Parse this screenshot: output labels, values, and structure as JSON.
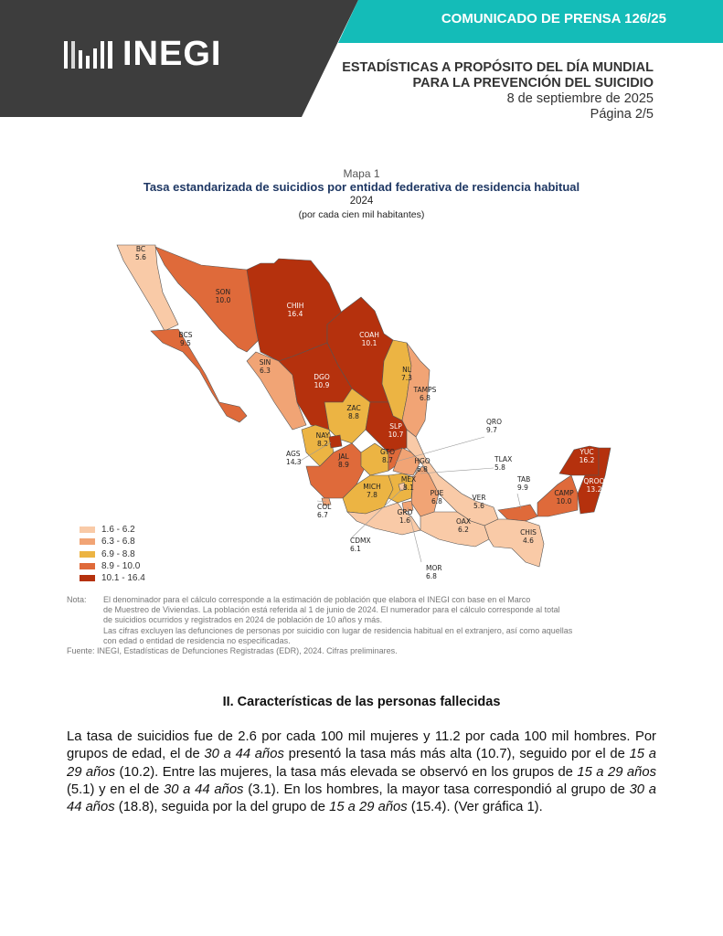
{
  "header": {
    "logo_text": "INEGI",
    "press_release": "COMUNICADO DE PRENSA 126/25",
    "title_line1": "ESTADÍSTICAS A PROPÓSITO DEL DÍA MUNDIAL",
    "title_line2": "PARA LA PREVENCIÓN DEL SUICIDIO",
    "date": "8 de septiembre de 2025",
    "page": "Página 2/5",
    "colors": {
      "dark": "#3d3d3d",
      "teal": "#14bcb8"
    }
  },
  "map": {
    "label": "Mapa 1",
    "title": "Tasa estandarizada de suicidios por entidad federativa de residencia habitual",
    "year": "2024",
    "unit": "(por cada cien mil habitantes)",
    "legend": [
      {
        "range": "1.6 - 6.2",
        "color": "#f9caa7"
      },
      {
        "range": "6.3 - 6.8",
        "color": "#f1a475"
      },
      {
        "range": "6.9 - 8.8",
        "color": "#ecb443"
      },
      {
        "range": "8.9 - 10.0",
        "color": "#df6a3a"
      },
      {
        "range": "10.1 - 16.4",
        "color": "#b5310d"
      }
    ],
    "states": [
      {
        "code": "BC",
        "value": "5.6"
      },
      {
        "code": "SON",
        "value": "10.0"
      },
      {
        "code": "CHIH",
        "value": "16.4"
      },
      {
        "code": "COAH",
        "value": "10.1"
      },
      {
        "code": "BCS",
        "value": "9.5"
      },
      {
        "code": "SIN",
        "value": "6.3"
      },
      {
        "code": "DGO",
        "value": "10.9"
      },
      {
        "code": "NL",
        "value": "7.3"
      },
      {
        "code": "TAMPS",
        "value": "6.8"
      },
      {
        "code": "ZAC",
        "value": "8.8"
      },
      {
        "code": "SLP",
        "value": "10.7"
      },
      {
        "code": "NAY",
        "value": "8.2"
      },
      {
        "code": "AGS",
        "value": "14.3"
      },
      {
        "code": "JAL",
        "value": "8.9"
      },
      {
        "code": "GTO",
        "value": "8.7"
      },
      {
        "code": "QRO",
        "value": "9.7"
      },
      {
        "code": "HGO",
        "value": "6.8"
      },
      {
        "code": "TLAX",
        "value": "5.8"
      },
      {
        "code": "MEX",
        "value": "8.1"
      },
      {
        "code": "MICH",
        "value": "7.8"
      },
      {
        "code": "PUE",
        "value": "6.8"
      },
      {
        "code": "TAB",
        "value": "9.9"
      },
      {
        "code": "VER",
        "value": "5.6"
      },
      {
        "code": "YUC",
        "value": "16.2"
      },
      {
        "code": "QROO",
        "value": "13.2"
      },
      {
        "code": "CAMP",
        "value": "10.0"
      },
      {
        "code": "COL",
        "value": "6.7"
      },
      {
        "code": "GRO",
        "value": "1.6"
      },
      {
        "code": "OAX",
        "value": "6.2"
      },
      {
        "code": "CHIS",
        "value": "4.6"
      },
      {
        "code": "CDMX",
        "value": "6.1"
      },
      {
        "code": "MOR",
        "value": "6.8"
      }
    ]
  },
  "notes": {
    "nota_label": "Nota:",
    "nota_lines": [
      "El denominador para el cálculo corresponde a la estimación de población que elabora el INEGI con base en el Marco",
      "de Muestreo de Viviendas. La población está referida al 1 de junio de 2024. El numerador para el cálculo corresponde al total",
      "de suicidios ocurridos y registrados en 2024 de población de 10 años y más.",
      "Las cifras excluyen las defunciones de personas por suicidio con lugar de residencia habitual en el extranjero, así como aquellas",
      "con edad o entidad de residencia no especificadas."
    ],
    "fuente_label": "Fuente:",
    "fuente": "INEGI, Estadísticas de Defunciones Registradas (EDR), 2024. Cifras preliminares."
  },
  "section": {
    "title": "II. Características de las personas fallecidas",
    "paragraph": [
      {
        "t": "La tasa de suicidios fue de 2.6 por cada 100 mil mujeres y 11.2 por cada 100 mil hombres. Por grupos de edad, el de "
      },
      {
        "i": "30 a 44 años"
      },
      {
        "t": " presentó la tasa más más alta (10.7), seguido por el de "
      },
      {
        "i": "15 a 29 años"
      },
      {
        "t": " (10.2). Entre las mujeres, la tasa más elevada se observó en los grupos de "
      },
      {
        "i": "15 a 29 años"
      },
      {
        "t": " (5.1) y en el de "
      },
      {
        "i": "30 a 44 años"
      },
      {
        "t": " (3.1). En los hombres, la mayor tasa correspondió al grupo de "
      },
      {
        "i": "30 a 44 años"
      },
      {
        "t": " (18.8), seguida por la del grupo de "
      },
      {
        "i": "15 a 29 años"
      },
      {
        "t": " (15.4). (Ver gráfica 1)."
      }
    ]
  }
}
